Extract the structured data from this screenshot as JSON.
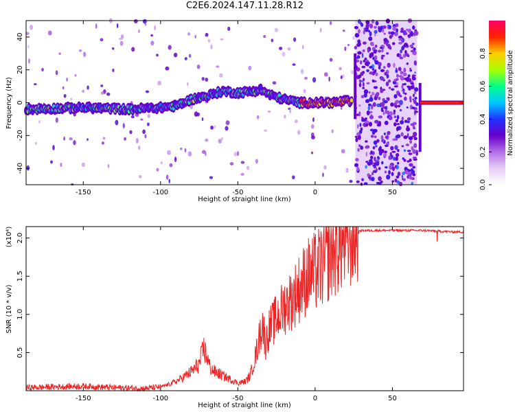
{
  "title": "C2E6.2024.147.11.28.R12",
  "colorbar": {
    "label": "Normalized spectral amplitude",
    "ticks": [
      "0.0",
      "0.2",
      "0.4",
      "0.6",
      "0.8"
    ],
    "tick_values": [
      0.0,
      0.2,
      0.4,
      0.6,
      0.8
    ],
    "range": [
      0,
      1
    ],
    "palette": [
      "#ffffff",
      "#e6cdf5",
      "#b46ee6",
      "#6600cc",
      "#2233ff",
      "#00c8ff",
      "#00ff88",
      "#aaff00",
      "#ffcc00",
      "#ff2200",
      "#ff0066"
    ]
  },
  "chart_data": [
    {
      "type": "heatmap",
      "xlabel": "Height of straight line (km)",
      "ylabel": "Frequency (Hz)",
      "xlim": [
        -187,
        96
      ],
      "ylim": [
        -50,
        50
      ],
      "xticks": [
        -150,
        -100,
        -50,
        0,
        50
      ],
      "yticks": [
        -40,
        -20,
        0,
        20,
        40
      ],
      "grid": false,
      "ridge": {
        "x": [
          -187,
          -150,
          -120,
          -100,
          -90,
          -80,
          -70,
          -60,
          -50,
          -40,
          -35,
          -30,
          -20,
          -10,
          0,
          10,
          20,
          24
        ],
        "y": [
          -4,
          -3,
          -4,
          -3,
          -2,
          2,
          4,
          7,
          6,
          7,
          8,
          5,
          2,
          0,
          0,
          0,
          1,
          0
        ]
      },
      "noise_band": {
        "x": [
          26,
          66
        ],
        "y": [
          -50,
          50
        ]
      },
      "steady_tone": {
        "x": [
          68,
          96
        ],
        "y": 0
      }
    },
    {
      "type": "line",
      "xlabel": "Height of straight line (km)",
      "ylabel": "SNR (10 * v/v)",
      "scale_label": "(x10⁴)",
      "xlim": [
        -187,
        96
      ],
      "ylim": [
        0,
        2.15
      ],
      "xticks": [
        -150,
        -100,
        -50,
        0,
        50
      ],
      "yticks": [
        0.5,
        1.0,
        1.5,
        2.0
      ],
      "ytick_labels": [
        "0.5",
        "1.0",
        "1.5",
        "2.0"
      ],
      "grid": false,
      "color": "#ee2222",
      "x": [
        -187,
        -170,
        -150,
        -130,
        -110,
        -100,
        -95,
        -90,
        -85,
        -80,
        -75,
        -72,
        -70,
        -68,
        -65,
        -60,
        -55,
        -50,
        -45,
        -42,
        -40,
        -38,
        -36,
        -34,
        -32,
        -30,
        -25,
        -20,
        -15,
        -10,
        -5,
        0,
        5,
        10,
        15,
        20,
        25,
        30,
        40,
        50,
        60,
        70,
        80,
        90,
        96
      ],
      "y": [
        0.04,
        0.05,
        0.06,
        0.04,
        0.03,
        0.05,
        0.08,
        0.12,
        0.18,
        0.25,
        0.35,
        0.55,
        0.45,
        0.3,
        0.25,
        0.2,
        0.15,
        0.1,
        0.12,
        0.2,
        0.35,
        0.5,
        0.7,
        0.9,
        0.6,
        0.8,
        0.95,
        1.1,
        1.2,
        1.35,
        1.5,
        1.55,
        1.65,
        1.8,
        1.9,
        1.95,
        2.05,
        2.1,
        2.1,
        2.1,
        2.1,
        2.1,
        2.09,
        2.08,
        2.08
      ],
      "jitter": 0.35,
      "dip": {
        "x": 79,
        "y": 1.95
      }
    }
  ]
}
